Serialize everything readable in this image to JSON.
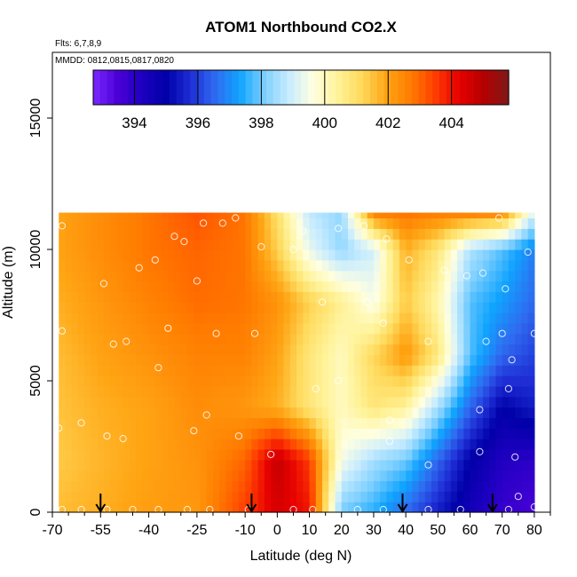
{
  "chart_data": {
    "type": "heatmap",
    "title": "ATOM1 Northbound CO2.X",
    "annotations": [
      "Flts: 6,7,8,9",
      "MMDD: 0812,0815,0817,0820"
    ],
    "xlabel": "Latitude (deg N)",
    "ylabel": "Altitude (m)",
    "xlim": [
      -70,
      85
    ],
    "ylim": [
      0,
      17500
    ],
    "x_ticks": [
      -70,
      -55,
      -40,
      -25,
      -10,
      0,
      10,
      20,
      30,
      40,
      50,
      60,
      70,
      80
    ],
    "y_ticks": [
      0,
      5000,
      10000,
      15000
    ],
    "colorbar": {
      "range": [
        392.7,
        405.8
      ],
      "ticks": [
        394,
        396,
        398,
        400,
        402,
        404
      ],
      "colors": [
        "#7a28ff",
        "#4b00d8",
        "#1e00c0",
        "#0000a8",
        "#1f2fd6",
        "#2f6bf0",
        "#10a4ff",
        "#7fd0ff",
        "#c8ecff",
        "#ffffe0",
        "#fff39a",
        "#ffd95a",
        "#ffa514",
        "#ff7c00",
        "#ff3c00",
        "#e60000",
        "#b30000",
        "#7f1a1a"
      ]
    },
    "data_extent": {
      "lat_range": [
        -68,
        80
      ],
      "alt_range": [
        0,
        11400
      ]
    },
    "profile_markers_lat": [
      -55,
      -8,
      39,
      67
    ],
    "field_anchors": [
      {
        "lat": -68,
        "alt": 0,
        "value": 401.6
      },
      {
        "lat": -55,
        "alt": 0,
        "value": 401.8
      },
      {
        "lat": -40,
        "alt": 0,
        "value": 402.1
      },
      {
        "lat": -25,
        "alt": 0,
        "value": 402.2
      },
      {
        "lat": -10,
        "alt": 0,
        "value": 403.5
      },
      {
        "lat": 0,
        "alt": 0,
        "value": 404.5
      },
      {
        "lat": 10,
        "alt": 0,
        "value": 404.0
      },
      {
        "lat": 20,
        "alt": 0,
        "value": 398.0
      },
      {
        "lat": 30,
        "alt": 0,
        "value": 397.5
      },
      {
        "lat": 40,
        "alt": 0,
        "value": 396.5
      },
      {
        "lat": 50,
        "alt": 0,
        "value": 395.5
      },
      {
        "lat": 60,
        "alt": 0,
        "value": 394.5
      },
      {
        "lat": 70,
        "alt": 0,
        "value": 393.8
      },
      {
        "lat": 80,
        "alt": 0,
        "value": 393.5
      },
      {
        "lat": -68,
        "alt": 2000,
        "value": 401.4
      },
      {
        "lat": -55,
        "alt": 2000,
        "value": 401.7
      },
      {
        "lat": -40,
        "alt": 2000,
        "value": 402.0
      },
      {
        "lat": -25,
        "alt": 2000,
        "value": 402.3
      },
      {
        "lat": -10,
        "alt": 2000,
        "value": 403.0
      },
      {
        "lat": 0,
        "alt": 2000,
        "value": 404.8
      },
      {
        "lat": 10,
        "alt": 2000,
        "value": 403.5
      },
      {
        "lat": 20,
        "alt": 2000,
        "value": 399.5
      },
      {
        "lat": 30,
        "alt": 2000,
        "value": 398.5
      },
      {
        "lat": 40,
        "alt": 2000,
        "value": 398.0
      },
      {
        "lat": 50,
        "alt": 2000,
        "value": 396.5
      },
      {
        "lat": 60,
        "alt": 2000,
        "value": 395.0
      },
      {
        "lat": 70,
        "alt": 2000,
        "value": 394.2
      },
      {
        "lat": 80,
        "alt": 2000,
        "value": 394.0
      },
      {
        "lat": -68,
        "alt": 4000,
        "value": 401.5
      },
      {
        "lat": -55,
        "alt": 4000,
        "value": 401.8
      },
      {
        "lat": -40,
        "alt": 4000,
        "value": 402.0
      },
      {
        "lat": -25,
        "alt": 4000,
        "value": 402.4
      },
      {
        "lat": -10,
        "alt": 4000,
        "value": 402.2
      },
      {
        "lat": 0,
        "alt": 4000,
        "value": 401.8
      },
      {
        "lat": 10,
        "alt": 4000,
        "value": 400.8
      },
      {
        "lat": 20,
        "alt": 4000,
        "value": 400.0
      },
      {
        "lat": 30,
        "alt": 4000,
        "value": 400.8
      },
      {
        "lat": 40,
        "alt": 4000,
        "value": 400.4
      },
      {
        "lat": 50,
        "alt": 4000,
        "value": 398.5
      },
      {
        "lat": 60,
        "alt": 4000,
        "value": 396.5
      },
      {
        "lat": 70,
        "alt": 4000,
        "value": 395.0
      },
      {
        "lat": 80,
        "alt": 4000,
        "value": 395.5
      },
      {
        "lat": -68,
        "alt": 6000,
        "value": 401.6
      },
      {
        "lat": -55,
        "alt": 6000,
        "value": 402.0
      },
      {
        "lat": -40,
        "alt": 6000,
        "value": 402.3
      },
      {
        "lat": -25,
        "alt": 6000,
        "value": 402.6
      },
      {
        "lat": -10,
        "alt": 6000,
        "value": 402.6
      },
      {
        "lat": 0,
        "alt": 6000,
        "value": 402.0
      },
      {
        "lat": 10,
        "alt": 6000,
        "value": 400.8
      },
      {
        "lat": 20,
        "alt": 6000,
        "value": 400.0
      },
      {
        "lat": 30,
        "alt": 6000,
        "value": 401.2
      },
      {
        "lat": 40,
        "alt": 6000,
        "value": 402.2
      },
      {
        "lat": 50,
        "alt": 6000,
        "value": 400.8
      },
      {
        "lat": 60,
        "alt": 6000,
        "value": 397.8
      },
      {
        "lat": 70,
        "alt": 6000,
        "value": 396.5
      },
      {
        "lat": 80,
        "alt": 6000,
        "value": 396.0
      },
      {
        "lat": -68,
        "alt": 8000,
        "value": 401.8
      },
      {
        "lat": -55,
        "alt": 8000,
        "value": 402.2
      },
      {
        "lat": -40,
        "alt": 8000,
        "value": 402.6
      },
      {
        "lat": -25,
        "alt": 8000,
        "value": 402.9
      },
      {
        "lat": -10,
        "alt": 8000,
        "value": 402.8
      },
      {
        "lat": 0,
        "alt": 8000,
        "value": 402.3
      },
      {
        "lat": 10,
        "alt": 8000,
        "value": 401.3
      },
      {
        "lat": 20,
        "alt": 8000,
        "value": 400.5
      },
      {
        "lat": 30,
        "alt": 8000,
        "value": 399.5
      },
      {
        "lat": 40,
        "alt": 8000,
        "value": 401.4
      },
      {
        "lat": 50,
        "alt": 8000,
        "value": 400.2
      },
      {
        "lat": 60,
        "alt": 8000,
        "value": 397.8
      },
      {
        "lat": 70,
        "alt": 8000,
        "value": 397.2
      },
      {
        "lat": 80,
        "alt": 8000,
        "value": 396.5
      },
      {
        "lat": -68,
        "alt": 10000,
        "value": 402.0
      },
      {
        "lat": -55,
        "alt": 10000,
        "value": 402.4
      },
      {
        "lat": -40,
        "alt": 10000,
        "value": 402.8
      },
      {
        "lat": -25,
        "alt": 10000,
        "value": 403.0
      },
      {
        "lat": -10,
        "alt": 10000,
        "value": 402.8
      },
      {
        "lat": 0,
        "alt": 10000,
        "value": 401.3
      },
      {
        "lat": 10,
        "alt": 10000,
        "value": 399.3
      },
      {
        "lat": 20,
        "alt": 10000,
        "value": 398.3
      },
      {
        "lat": 30,
        "alt": 10000,
        "value": 399.0
      },
      {
        "lat": 40,
        "alt": 10000,
        "value": 401.8
      },
      {
        "lat": 50,
        "alt": 10000,
        "value": 400.8
      },
      {
        "lat": 60,
        "alt": 10000,
        "value": 398.6
      },
      {
        "lat": 70,
        "alt": 10000,
        "value": 397.8
      },
      {
        "lat": 80,
        "alt": 10000,
        "value": 396.8
      },
      {
        "lat": -68,
        "alt": 11400,
        "value": 402.0
      },
      {
        "lat": -55,
        "alt": 11400,
        "value": 402.4
      },
      {
        "lat": -40,
        "alt": 11400,
        "value": 402.8
      },
      {
        "lat": -25,
        "alt": 11400,
        "value": 403.2
      },
      {
        "lat": -10,
        "alt": 11400,
        "value": 402.8
      },
      {
        "lat": 0,
        "alt": 11400,
        "value": 401.0
      },
      {
        "lat": 10,
        "alt": 11400,
        "value": 398.8
      },
      {
        "lat": 20,
        "alt": 11400,
        "value": 398.3
      },
      {
        "lat": 30,
        "alt": 11400,
        "value": 402.5
      },
      {
        "lat": 40,
        "alt": 11400,
        "value": 402.8
      },
      {
        "lat": 50,
        "alt": 11400,
        "value": 402.6
      },
      {
        "lat": 60,
        "alt": 11400,
        "value": 402.5
      },
      {
        "lat": 70,
        "alt": 11400,
        "value": 402.3
      },
      {
        "lat": 80,
        "alt": 11400,
        "value": 399.0
      }
    ],
    "sample_points": [
      {
        "lat": -67,
        "alt": 10900
      },
      {
        "lat": -67,
        "alt": 6900
      },
      {
        "lat": -68,
        "alt": 3200
      },
      {
        "lat": -61,
        "alt": 3400
      },
      {
        "lat": -54,
        "alt": 8700
      },
      {
        "lat": -53,
        "alt": 2900
      },
      {
        "lat": -51,
        "alt": 6400
      },
      {
        "lat": -48,
        "alt": 2800
      },
      {
        "lat": -47,
        "alt": 6500
      },
      {
        "lat": -43,
        "alt": 9300
      },
      {
        "lat": -38,
        "alt": 9600
      },
      {
        "lat": -37,
        "alt": 5500
      },
      {
        "lat": -34,
        "alt": 7000
      },
      {
        "lat": -32,
        "alt": 10500
      },
      {
        "lat": -29,
        "alt": 10300
      },
      {
        "lat": -25,
        "alt": 8800
      },
      {
        "lat": -26,
        "alt": 3100
      },
      {
        "lat": -23,
        "alt": 11000
      },
      {
        "lat": -22,
        "alt": 3700
      },
      {
        "lat": -19,
        "alt": 6800
      },
      {
        "lat": -17,
        "alt": 11000
      },
      {
        "lat": -13,
        "alt": 11200
      },
      {
        "lat": -12,
        "alt": 2900
      },
      {
        "lat": -7,
        "alt": 6800
      },
      {
        "lat": -5,
        "alt": 10100
      },
      {
        "lat": -2,
        "alt": 2200
      },
      {
        "lat": 5,
        "alt": 10000
      },
      {
        "lat": 8,
        "alt": 10700
      },
      {
        "lat": 12,
        "alt": 4700
      },
      {
        "lat": 14,
        "alt": 8000
      },
      {
        "lat": 19,
        "alt": 10800
      },
      {
        "lat": 19,
        "alt": 5000
      },
      {
        "lat": 27,
        "alt": 10900
      },
      {
        "lat": 28,
        "alt": 8000
      },
      {
        "lat": 33,
        "alt": 7200
      },
      {
        "lat": 35,
        "alt": 3500
      },
      {
        "lat": 35,
        "alt": 2700
      },
      {
        "lat": 34,
        "alt": 10400
      },
      {
        "lat": 41,
        "alt": 9600
      },
      {
        "lat": 47,
        "alt": 6500
      },
      {
        "lat": 47,
        "alt": 1800
      },
      {
        "lat": 52,
        "alt": 9200
      },
      {
        "lat": 59,
        "alt": 9000
      },
      {
        "lat": 64,
        "alt": 9100
      },
      {
        "lat": 63,
        "alt": 3900
      },
      {
        "lat": 63,
        "alt": 2300
      },
      {
        "lat": 65,
        "alt": 6500
      },
      {
        "lat": 69,
        "alt": 11200
      },
      {
        "lat": 70,
        "alt": 6800
      },
      {
        "lat": 71,
        "alt": 8500
      },
      {
        "lat": 72,
        "alt": 4700
      },
      {
        "lat": 73,
        "alt": 5800
      },
      {
        "lat": 74,
        "alt": 2100
      },
      {
        "lat": 75,
        "alt": 600
      },
      {
        "lat": 78,
        "alt": 9900
      },
      {
        "lat": 80,
        "alt": 6800
      },
      {
        "lat": 80,
        "alt": 200
      },
      {
        "lat": -67,
        "alt": 100
      },
      {
        "lat": -61,
        "alt": 100
      },
      {
        "lat": -53,
        "alt": 100
      },
      {
        "lat": -45,
        "alt": 100
      },
      {
        "lat": -37,
        "alt": 100
      },
      {
        "lat": -28,
        "alt": 100
      },
      {
        "lat": -21,
        "alt": 100
      },
      {
        "lat": -9,
        "alt": 100
      },
      {
        "lat": 5,
        "alt": 100
      },
      {
        "lat": 11,
        "alt": 100
      },
      {
        "lat": 25,
        "alt": 100
      },
      {
        "lat": 33,
        "alt": 100
      },
      {
        "lat": 47,
        "alt": 100
      },
      {
        "lat": 57,
        "alt": 100
      },
      {
        "lat": 72,
        "alt": 100
      }
    ]
  }
}
